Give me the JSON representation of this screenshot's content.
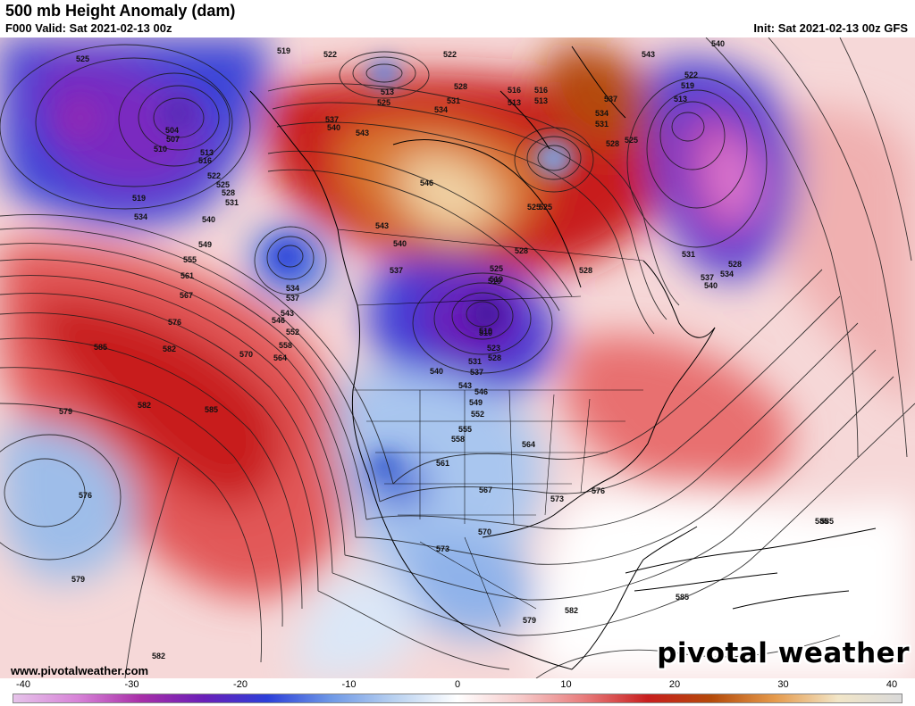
{
  "header": {
    "title": "500 mb Height Anomaly (dam)",
    "valid": "F000 Valid: Sat 2021-02-13 00z",
    "init": "Init: Sat 2021-02-13 00z GFS"
  },
  "footer": {
    "website": "www.pivotalweather.com",
    "brand": "pivotal weather"
  },
  "colorbar": {
    "ticks": [
      "-40",
      "-30",
      "-20",
      "-10",
      "0",
      "10",
      "20",
      "30",
      "40"
    ],
    "colors": [
      "#e6c3ea",
      "#d884d8",
      "#a82fa8",
      "#6a1fb8",
      "#2c3fd9",
      "#6e98e6",
      "#b9d1f0",
      "#ffffff",
      "#f6c9c9",
      "#e87c7c",
      "#c81e1e",
      "#b44a0a",
      "#e59a4c",
      "#f2e6c8",
      "#d9d9d9"
    ]
  },
  "anomaly_centers": [
    {
      "name": "gulf-of-alaska-low",
      "sign": "negative",
      "strength": -30
    },
    {
      "name": "canadian-high",
      "sign": "positive",
      "strength": 35
    },
    {
      "name": "north-atlantic-low",
      "sign": "negative",
      "strength": -30
    },
    {
      "name": "hudson-bay-low",
      "sign": "negative",
      "strength": -30
    },
    {
      "name": "subtropical-pacific-high",
      "sign": "positive",
      "strength": 20
    },
    {
      "name": "hawaii-low",
      "sign": "negative",
      "strength": -10
    }
  ],
  "contour_labels": [
    {
      "text": "525"
    },
    {
      "text": "519"
    },
    {
      "text": "522"
    },
    {
      "text": "513"
    },
    {
      "text": "525"
    },
    {
      "text": "504"
    },
    {
      "text": "507"
    },
    {
      "text": "510"
    },
    {
      "text": "513"
    },
    {
      "text": "516"
    },
    {
      "text": "519"
    },
    {
      "text": "522"
    },
    {
      "text": "525"
    },
    {
      "text": "528"
    },
    {
      "text": "531"
    },
    {
      "text": "534"
    },
    {
      "text": "540"
    },
    {
      "text": "549"
    },
    {
      "text": "555"
    },
    {
      "text": "561"
    },
    {
      "text": "567"
    },
    {
      "text": "576"
    },
    {
      "text": "585"
    },
    {
      "text": "582"
    },
    {
      "text": "585"
    },
    {
      "text": "570"
    },
    {
      "text": "564"
    },
    {
      "text": "558"
    },
    {
      "text": "552"
    },
    {
      "text": "546"
    },
    {
      "text": "543"
    },
    {
      "text": "537"
    },
    {
      "text": "534"
    },
    {
      "text": "537"
    },
    {
      "text": "540"
    },
    {
      "text": "543"
    },
    {
      "text": "537"
    },
    {
      "text": "540"
    },
    {
      "text": "543"
    },
    {
      "text": "546"
    },
    {
      "text": "534"
    },
    {
      "text": "531"
    },
    {
      "text": "528"
    },
    {
      "text": "522"
    },
    {
      "text": "513"
    },
    {
      "text": "516"
    },
    {
      "text": "525"
    },
    {
      "text": "510"
    },
    {
      "text": "519"
    },
    {
      "text": "540"
    },
    {
      "text": "543"
    },
    {
      "text": "546"
    },
    {
      "text": "549"
    },
    {
      "text": "552"
    },
    {
      "text": "555"
    },
    {
      "text": "558"
    },
    {
      "text": "561"
    },
    {
      "text": "564"
    },
    {
      "text": "567"
    },
    {
      "text": "573"
    },
    {
      "text": "576"
    },
    {
      "text": "570"
    },
    {
      "text": "573"
    },
    {
      "text": "579"
    },
    {
      "text": "582"
    },
    {
      "text": "585"
    },
    {
      "text": "585"
    },
    {
      "text": "579"
    },
    {
      "text": "576"
    },
    {
      "text": "579"
    },
    {
      "text": "582"
    },
    {
      "text": "582"
    },
    {
      "text": "540"
    },
    {
      "text": "522"
    },
    {
      "text": "519"
    },
    {
      "text": "513"
    },
    {
      "text": "531"
    },
    {
      "text": "537"
    },
    {
      "text": "540"
    },
    {
      "text": "534"
    },
    {
      "text": "528"
    },
    {
      "text": "543"
    },
    {
      "text": "537"
    },
    {
      "text": "534"
    },
    {
      "text": "531"
    },
    {
      "text": "528"
    },
    {
      "text": "525"
    },
    {
      "text": "528"
    },
    {
      "text": "516"
    },
    {
      "text": "513"
    },
    {
      "text": "525"
    },
    {
      "text": "519"
    },
    {
      "text": "528"
    },
    {
      "text": "510"
    },
    {
      "text": "528"
    },
    {
      "text": "523"
    },
    {
      "text": "531"
    },
    {
      "text": "537"
    },
    {
      "text": "525"
    },
    {
      "text": "585"
    }
  ]
}
